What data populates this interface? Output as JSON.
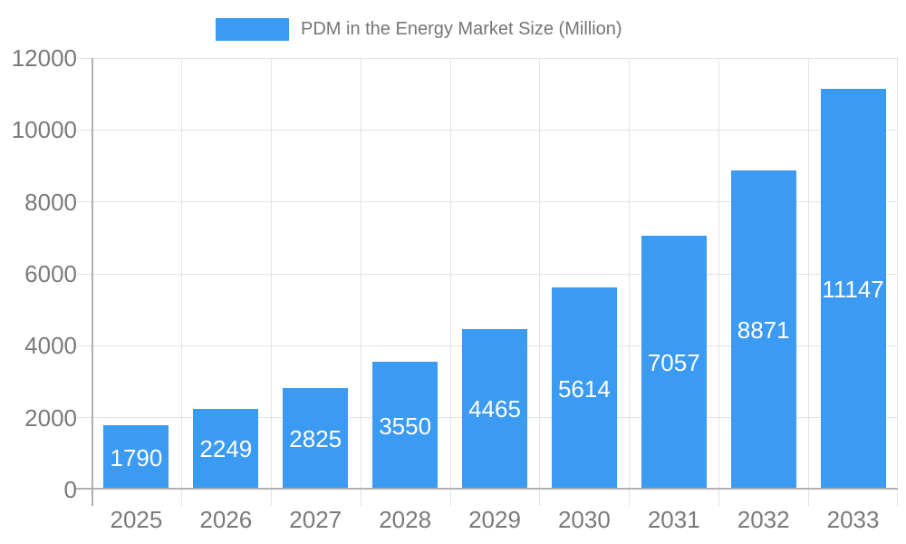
{
  "legend": {
    "label": "PDM in the Energy Market Size (Million)"
  },
  "chart_data": {
    "type": "bar",
    "title": "",
    "legend": [
      "PDM in the Energy Market Size (Million)"
    ],
    "legend_position": "top",
    "categories": [
      "2025",
      "2026",
      "2027",
      "2028",
      "2029",
      "2030",
      "2031",
      "2032",
      "2033"
    ],
    "values": [
      1790,
      2249,
      2825,
      3550,
      4465,
      5614,
      7057,
      8871,
      11147
    ],
    "xlabel": "",
    "ylabel": "",
    "ylim": [
      0,
      12000
    ],
    "yticks": [
      0,
      2000,
      4000,
      6000,
      8000,
      10000,
      12000
    ],
    "grid": true,
    "value_labels": "inside-center",
    "colors": {
      "bar": "#3b9af2",
      "axis_line": "#b0b0b0",
      "grid_line": "#e3e3e3",
      "tick_label": "#7a7a7a",
      "value_label": "#ffffff",
      "legend_text": "#757575",
      "background": "#ffffff"
    }
  }
}
